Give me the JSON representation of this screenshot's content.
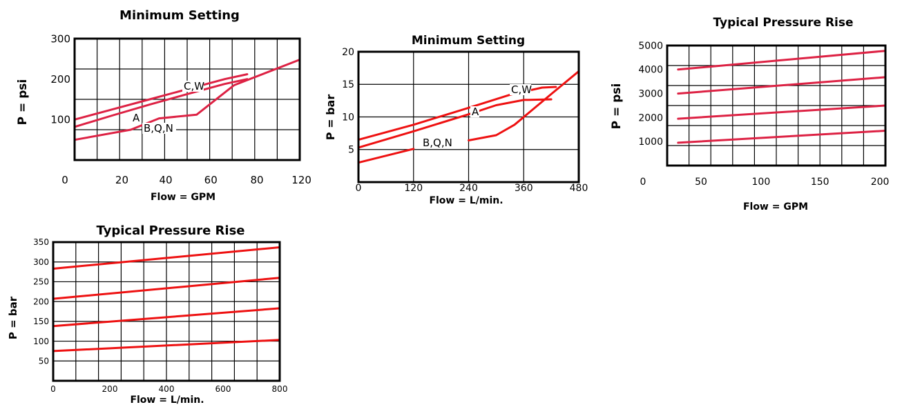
{
  "chart_data": [
    {
      "type": "line",
      "title": "Minimum Setting",
      "xlabel": "Flow = GPM",
      "ylabel": "P = psi",
      "xlim": [
        0,
        120
      ],
      "ylim": [
        0,
        300
      ],
      "xticks": [
        "0",
        "20",
        "40",
        "60",
        "80",
        "120"
      ],
      "yticks": [
        "100",
        "200",
        "300"
      ],
      "color": "#dd2244",
      "annotations": [
        "C,W",
        "A",
        "B,Q,N"
      ],
      "series": [
        {
          "x": [
            0,
            20,
            40,
            60,
            80,
            92
          ],
          "y": [
            100,
            125,
            150,
            175,
            200,
            212
          ]
        },
        {
          "x": [
            0,
            20,
            40,
            60,
            80,
            92
          ],
          "y": [
            82,
            110,
            137,
            163,
            188,
            200
          ]
        },
        {
          "x": [
            0,
            30,
            45,
            65,
            85,
            120
          ],
          "y": [
            50,
            75,
            103,
            112,
            185,
            248
          ]
        }
      ]
    },
    {
      "type": "line",
      "title": "Minimum Setting",
      "xlabel": "Flow = L/min.",
      "ylabel": "P = bar",
      "xlim": [
        0,
        480
      ],
      "ylim": [
        0,
        20
      ],
      "xticks": [
        "0",
        "120",
        "240",
        "360",
        "480"
      ],
      "yticks": [
        "5",
        "10",
        "15",
        "20"
      ],
      "color": "#ee1111",
      "annotations": [
        "C,W",
        "A",
        "B,Q,N"
      ],
      "series": [
        {
          "x": [
            0,
            120,
            240,
            330,
            400,
            430
          ],
          "y": [
            6.5,
            8.8,
            11.4,
            13.4,
            14.5,
            14.6
          ]
        },
        {
          "x": [
            0,
            120,
            240,
            300,
            360,
            420
          ],
          "y": [
            5.3,
            7.8,
            10.4,
            11.8,
            12.6,
            12.7
          ]
        },
        {
          "x": [
            0,
            120
          ],
          "y": [
            3.0,
            5.1
          ]
        },
        {
          "x": [
            240,
            300,
            340,
            420,
            480
          ],
          "y": [
            6.4,
            7.2,
            8.8,
            13.5,
            17.0
          ]
        }
      ]
    },
    {
      "type": "line",
      "title": "Typical Pressure Rise",
      "xlabel": "Flow = GPM",
      "ylabel": "P = psi",
      "xlim": [
        0,
        200
      ],
      "ylim": [
        0,
        5000
      ],
      "xticks": [
        "0",
        "50",
        "100",
        "150",
        "200"
      ],
      "yticks": [
        "1000",
        "2000",
        "3000",
        "4000",
        "5000"
      ],
      "color": "#dd2244",
      "series": [
        {
          "x": [
            10,
            200
          ],
          "y": [
            4000,
            4780
          ]
        },
        {
          "x": [
            10,
            200
          ],
          "y": [
            3000,
            3680
          ]
        },
        {
          "x": [
            10,
            200
          ],
          "y": [
            1950,
            2500
          ]
        },
        {
          "x": [
            10,
            200
          ],
          "y": [
            950,
            1450
          ]
        }
      ]
    },
    {
      "type": "line",
      "title": "Typical Pressure Rise",
      "xlabel": "Flow = L/min.",
      "ylabel": "P = bar",
      "xlim": [
        0,
        800
      ],
      "ylim": [
        0,
        350
      ],
      "xticks": [
        "0",
        "200",
        "400",
        "600",
        "800"
      ],
      "yticks": [
        "50",
        "100",
        "150",
        "200",
        "250",
        "300",
        "350"
      ],
      "color": "#ee1111",
      "series": [
        {
          "x": [
            0,
            800
          ],
          "y": [
            283,
            337
          ]
        },
        {
          "x": [
            0,
            800
          ],
          "y": [
            207,
            260
          ]
        },
        {
          "x": [
            0,
            800
          ],
          "y": [
            138,
            183
          ]
        },
        {
          "x": [
            0,
            800
          ],
          "y": [
            75,
            103
          ]
        }
      ]
    }
  ]
}
